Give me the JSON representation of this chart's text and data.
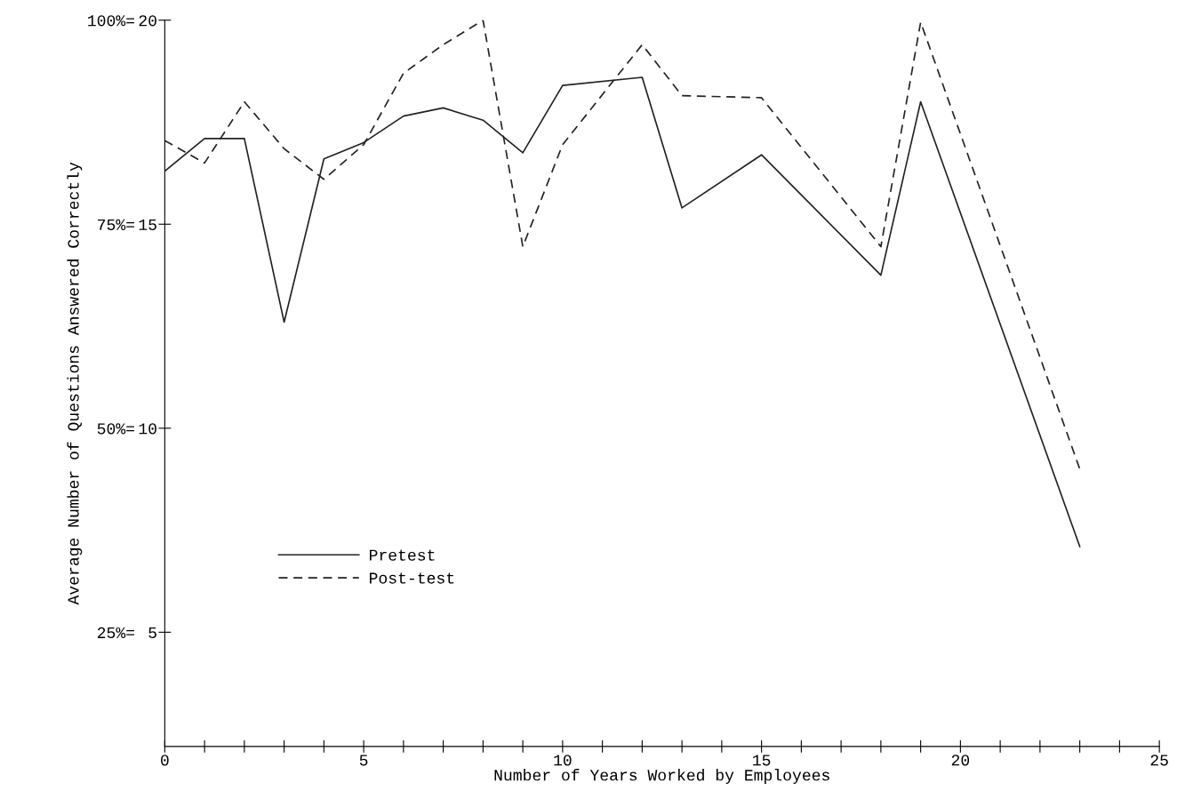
{
  "chart_data": {
    "type": "line",
    "xlabel": "Number of Years Worked by Employees",
    "y2label": "Average Number of Questions Answered Correctly",
    "xlim": [
      0,
      25
    ],
    "ylim": [
      2.2,
      20
    ],
    "xticks": [
      0,
      {
        "value": 1,
        "label": null
      },
      {
        "value": 2,
        "label": null
      },
      {
        "value": 3,
        "label": null
      },
      {
        "value": 4,
        "label": null
      },
      5,
      {
        "value": 6,
        "label": null
      },
      {
        "value": 7,
        "label": null
      },
      {
        "value": 8,
        "label": null
      },
      {
        "value": 9,
        "label": null
      },
      10,
      {
        "value": 11,
        "label": null
      },
      {
        "value": 12,
        "label": null
      },
      {
        "value": 13,
        "label": null
      },
      {
        "value": 14,
        "label": null
      },
      15,
      {
        "value": 16,
        "label": null
      },
      {
        "value": 17,
        "label": null
      },
      {
        "value": 18,
        "label": null
      },
      {
        "value": 19,
        "label": null
      },
      20,
      {
        "value": 21,
        "label": null
      },
      {
        "value": 22,
        "label": null
      },
      {
        "value": 23,
        "label": null
      },
      {
        "value": 24,
        "label": null
      },
      25
    ],
    "yticks": [
      5,
      10,
      15,
      20
    ],
    "y2lim": [
      11,
      100
    ],
    "y2ticks": [
      {
        "value": 25,
        "label": "25%="
      },
      {
        "value": 50,
        "label": "50%="
      },
      {
        "value": 75,
        "label": "75%="
      },
      {
        "value": 100,
        "label": "100%="
      }
    ],
    "grid": false,
    "legend": "lower left",
    "marker": "none",
    "series": [
      {
        "name": "Pretest",
        "color": "#222222",
        "line_style": "solid",
        "x": [
          0,
          1,
          2,
          3,
          4,
          5,
          6,
          7,
          8,
          9,
          10,
          12,
          13,
          15,
          18,
          19,
          23
        ],
        "values": [
          16.3,
          17.1,
          17.1,
          12.6,
          16.6,
          17.0,
          17.65,
          17.85,
          17.55,
          16.75,
          18.4,
          18.6,
          15.4,
          16.7,
          13.75,
          18.0,
          7.1
        ]
      },
      {
        "name": "Post-test",
        "color": "#222222",
        "line_style": "dashed",
        "x": [
          0,
          1,
          2,
          3,
          4,
          5,
          6,
          7,
          8,
          9,
          10,
          12,
          13,
          15,
          18,
          19,
          23
        ],
        "values": [
          17.05,
          16.5,
          18.0,
          16.85,
          16.1,
          16.95,
          18.7,
          19.4,
          20.0,
          14.45,
          16.95,
          19.4,
          18.15,
          18.1,
          14.45,
          19.95,
          9.0
        ]
      }
    ]
  }
}
